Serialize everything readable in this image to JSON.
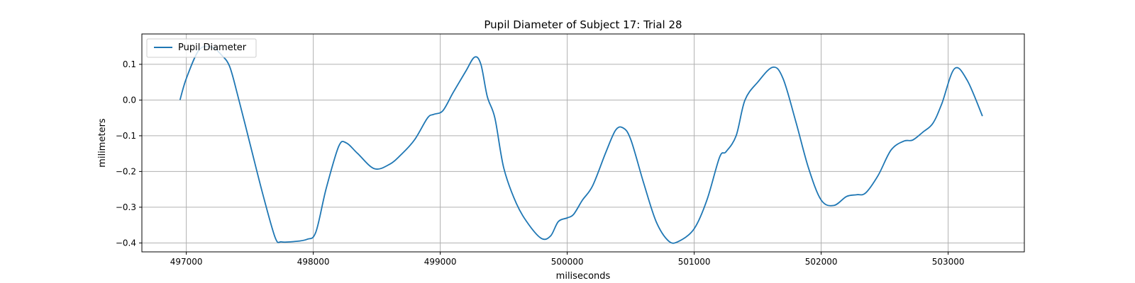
{
  "chart_data": {
    "type": "line",
    "title": "Pupil Diameter of Subject 17: Trial 28",
    "xlabel": "miliseconds",
    "ylabel": "milimeters",
    "xlim": [
      496650,
      503600
    ],
    "ylim": [
      -0.425,
      0.185
    ],
    "grid": true,
    "legend_position": "top-left",
    "xticks": [
      497000,
      498000,
      499000,
      500000,
      501000,
      502000,
      503000
    ],
    "xtick_labels": [
      "497000",
      "498000",
      "499000",
      "500000",
      "501000",
      "502000",
      "503000"
    ],
    "yticks": [
      0.1,
      0.0,
      -0.1,
      -0.2,
      -0.3,
      -0.4
    ],
    "ytick_labels": [
      "0.1",
      "0.0",
      "−0.1",
      "−0.2",
      "−0.3",
      "−0.4"
    ],
    "series": [
      {
        "name": "Pupil Diameter",
        "color": "#1f77b4",
        "x": [
          496950,
          497000,
          497100,
          497200,
          497280,
          497340,
          497400,
          497500,
          497600,
          497700,
          497750,
          497850,
          497950,
          498020,
          498100,
          498200,
          498260,
          498350,
          498480,
          498600,
          498700,
          498800,
          498900,
          498950,
          499020,
          499100,
          499200,
          499270,
          499320,
          499370,
          499430,
          499500,
          499600,
          499700,
          499800,
          499870,
          499930,
          500000,
          500050,
          500120,
          500200,
          500300,
          500380,
          500440,
          500500,
          500600,
          500700,
          500800,
          500880,
          501000,
          501100,
          501200,
          501250,
          501330,
          501400,
          501500,
          501620,
          501700,
          501800,
          501900,
          502000,
          502100,
          502200,
          502280,
          502350,
          502450,
          502550,
          502650,
          502720,
          502800,
          502880,
          502950,
          503050,
          503150,
          503270
        ],
        "y": [
          0.0,
          0.06,
          0.14,
          0.148,
          0.125,
          0.095,
          0.02,
          -0.12,
          -0.26,
          -0.385,
          -0.397,
          -0.396,
          -0.39,
          -0.37,
          -0.25,
          -0.13,
          -0.12,
          -0.15,
          -0.192,
          -0.18,
          -0.15,
          -0.11,
          -0.05,
          -0.04,
          -0.03,
          0.02,
          0.08,
          0.12,
          0.1,
          0.01,
          -0.05,
          -0.19,
          -0.29,
          -0.35,
          -0.388,
          -0.38,
          -0.34,
          -0.33,
          -0.32,
          -0.28,
          -0.24,
          -0.15,
          -0.085,
          -0.078,
          -0.11,
          -0.23,
          -0.34,
          -0.395,
          -0.395,
          -0.36,
          -0.28,
          -0.16,
          -0.145,
          -0.1,
          0.0,
          0.05,
          0.092,
          0.06,
          -0.06,
          -0.19,
          -0.28,
          -0.295,
          -0.27,
          -0.265,
          -0.26,
          -0.21,
          -0.14,
          -0.115,
          -0.112,
          -0.09,
          -0.065,
          -0.01,
          0.088,
          0.055,
          -0.045
        ]
      }
    ]
  }
}
